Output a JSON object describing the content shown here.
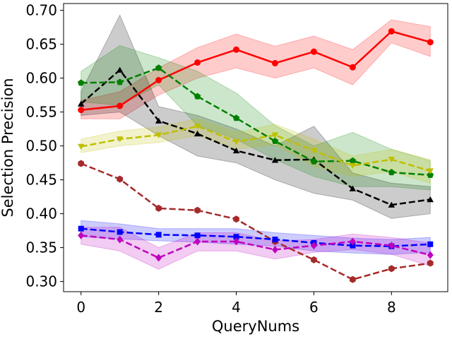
{
  "chart_data": {
    "type": "line",
    "title": "",
    "xlabel": "QueryNums",
    "ylabel": "Selection Precision",
    "xlim": [
      -0.45,
      9.45
    ],
    "ylim": [
      0.285,
      0.71
    ],
    "xticks": [
      0,
      2,
      4,
      6,
      8
    ],
    "xtick_labels": [
      "0",
      "2",
      "4",
      "6",
      "8"
    ],
    "yticks": [
      0.3,
      0.35,
      0.4,
      0.45,
      0.5,
      0.55,
      0.6,
      0.65,
      0.7
    ],
    "ytick_labels": [
      "0.30",
      "0.35",
      "0.40",
      "0.45",
      "0.50",
      "0.55",
      "0.60",
      "0.65",
      "0.70"
    ],
    "x": [
      0,
      1,
      2,
      3,
      4,
      5,
      6,
      7,
      8,
      9
    ],
    "series": [
      {
        "name": "red",
        "color": "#ff0000",
        "style": "solid",
        "marker": "circle",
        "values": [
          0.553,
          0.559,
          0.597,
          0.623,
          0.642,
          0.622,
          0.639,
          0.616,
          0.669,
          0.653
        ],
        "lower": [
          0.54,
          0.54,
          0.575,
          0.6,
          0.615,
          0.6,
          0.615,
          0.59,
          0.652,
          0.632
        ],
        "upper": [
          0.567,
          0.58,
          0.615,
          0.645,
          0.665,
          0.647,
          0.662,
          0.642,
          0.686,
          0.676
        ]
      },
      {
        "name": "black",
        "color": "#000000",
        "style": "dashed",
        "marker": "triangle",
        "values": [
          0.562,
          0.612,
          0.537,
          0.518,
          0.493,
          0.479,
          0.48,
          0.437,
          0.413,
          0.421
        ],
        "lower": [
          0.545,
          0.55,
          0.515,
          0.485,
          0.475,
          0.45,
          0.43,
          0.42,
          0.393,
          0.4
        ],
        "upper": [
          0.58,
          0.693,
          0.558,
          0.545,
          0.525,
          0.5,
          0.529,
          0.46,
          0.445,
          0.44
        ]
      },
      {
        "name": "green",
        "color": "#008000",
        "style": "dashed",
        "marker": "pentagon",
        "values": [
          0.593,
          0.594,
          0.615,
          0.573,
          0.541,
          0.507,
          0.477,
          0.478,
          0.461,
          0.457
        ],
        "lower": [
          0.565,
          0.56,
          0.59,
          0.53,
          0.51,
          0.48,
          0.455,
          0.44,
          0.44,
          0.435
        ],
        "upper": [
          0.61,
          0.648,
          0.63,
          0.61,
          0.578,
          0.53,
          0.5,
          0.52,
          0.495,
          0.478
        ]
      },
      {
        "name": "yellow",
        "color": "#bfbf00",
        "style": "dashed",
        "marker": "triangle-down",
        "values": [
          0.499,
          0.51,
          0.516,
          0.529,
          0.506,
          0.516,
          0.493,
          0.471,
          0.48,
          0.463
        ],
        "lower": [
          0.49,
          0.5,
          0.505,
          0.515,
          0.495,
          0.502,
          0.47,
          0.455,
          0.462,
          0.445
        ],
        "upper": [
          0.51,
          0.522,
          0.528,
          0.54,
          0.52,
          0.532,
          0.51,
          0.485,
          0.495,
          0.48
        ]
      },
      {
        "name": "brown",
        "color": "#a52a2a",
        "style": "dashed",
        "marker": "hexagon",
        "values": [
          0.474,
          0.451,
          0.408,
          0.405,
          0.392,
          0.359,
          0.332,
          0.303,
          0.319,
          0.327
        ],
        "lower": null,
        "upper": null
      },
      {
        "name": "blue",
        "color": "#0000ff",
        "style": "dashed",
        "marker": "square",
        "values": [
          0.378,
          0.373,
          0.369,
          0.368,
          0.366,
          0.362,
          0.357,
          0.353,
          0.352,
          0.355
        ],
        "lower": [
          0.366,
          0.363,
          0.36,
          0.358,
          0.355,
          0.352,
          0.345,
          0.342,
          0.34,
          0.343
        ],
        "upper": [
          0.39,
          0.385,
          0.378,
          0.378,
          0.378,
          0.372,
          0.368,
          0.364,
          0.362,
          0.365
        ]
      },
      {
        "name": "magenta",
        "color": "#bf00bf",
        "style": "dashed",
        "marker": "diamond",
        "values": [
          0.368,
          0.362,
          0.335,
          0.359,
          0.359,
          0.347,
          0.353,
          0.359,
          0.353,
          0.339
        ],
        "lower": [
          0.355,
          0.345,
          0.318,
          0.345,
          0.345,
          0.333,
          0.343,
          0.347,
          0.34,
          0.323
        ],
        "upper": [
          0.38,
          0.38,
          0.35,
          0.372,
          0.372,
          0.36,
          0.362,
          0.37,
          0.365,
          0.357
        ]
      }
    ]
  }
}
